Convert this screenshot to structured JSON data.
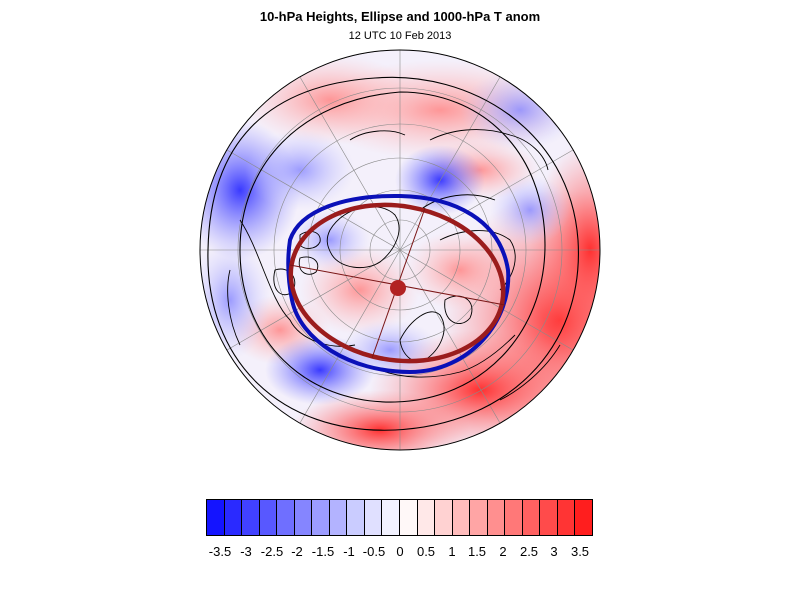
{
  "header": {
    "title": "10-hPa Heights, Ellipse and 1000-hPa T anom",
    "subtitle": "12 UTC 10 Feb 2013"
  },
  "map": {
    "projection": "polar stereographic, north pole",
    "overlay_colors": {
      "ellipse": "#9b1c1c",
      "polar_vortex_edge": "#0a10b8",
      "height_contour": "#000000",
      "center_marker": "#b22222"
    }
  },
  "colorbar": {
    "labels": [
      "-3.5",
      "-3",
      "-2.5",
      "-2",
      "-1.5",
      "-1",
      "-0.5",
      "0",
      "0.5",
      "1",
      "1.5",
      "2",
      "2.5",
      "3",
      "3.5"
    ],
    "colors": [
      "#1414ff",
      "#2a2aff",
      "#4141ff",
      "#5858ff",
      "#6f6fff",
      "#8585ff",
      "#9c9cff",
      "#b3b3ff",
      "#caccff",
      "#e0e0ff",
      "#f2f2ff",
      "#fff8f8",
      "#ffe8e8",
      "#ffd2d2",
      "#ffbcbc",
      "#ffa5a5",
      "#ff8f8f",
      "#ff7878",
      "#ff6161",
      "#ff4b4b",
      "#ff3434",
      "#ff1e1e"
    ]
  }
}
